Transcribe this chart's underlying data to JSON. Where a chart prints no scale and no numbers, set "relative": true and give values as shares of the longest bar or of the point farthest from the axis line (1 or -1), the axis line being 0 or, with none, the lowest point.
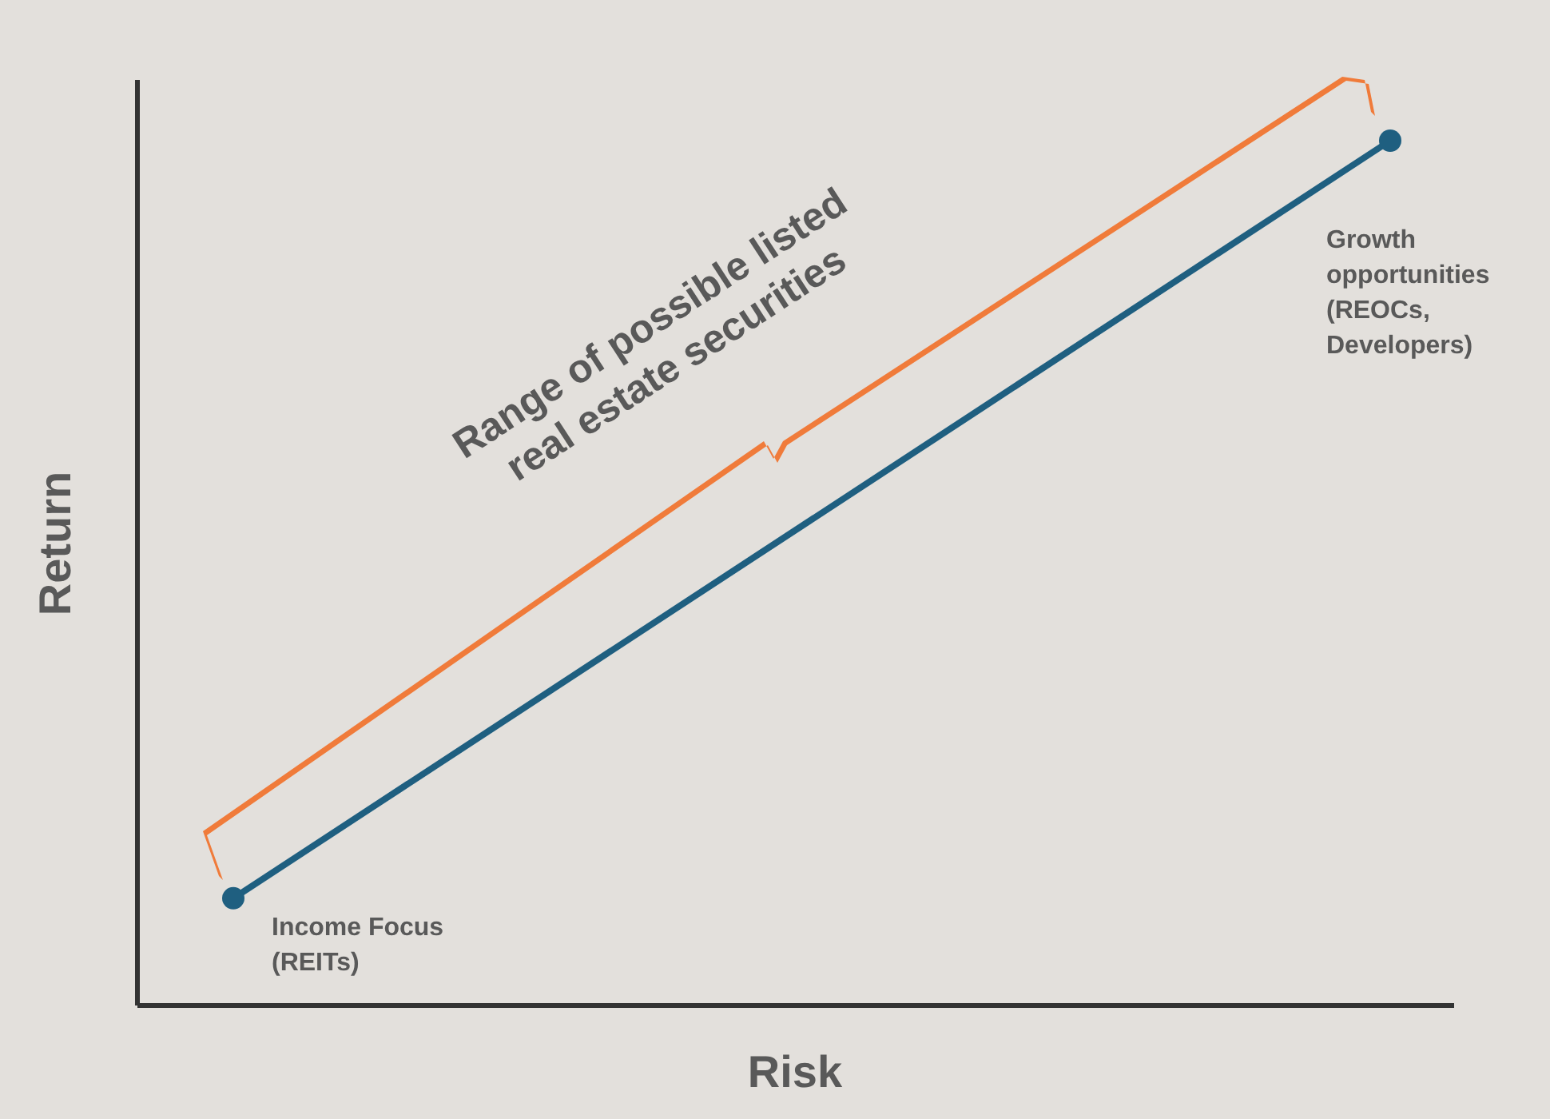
{
  "chart_data": {
    "type": "line",
    "relative": true,
    "xlabel": "Risk",
    "ylabel": "Return",
    "categories": [
      null,
      null
    ],
    "values": [
      0.124,
      1
    ],
    "color": "#1f5f80",
    "marker": "circle",
    "grid": false,
    "legend": false,
    "annotations": [
      "Income Focus (REITs)",
      "Growth opportunities (REOCs, Developers)",
      "Range of possible listed real estate securities"
    ]
  }
}
